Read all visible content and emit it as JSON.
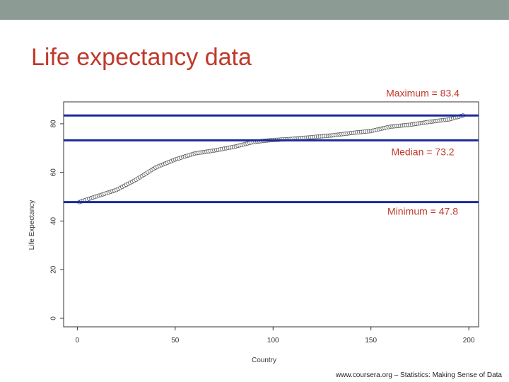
{
  "slide": {
    "title": "Life expectancy data",
    "footer": "www.coursera.org – Statistics: Making Sense of Data"
  },
  "colors": {
    "topbar": "#8c9c94",
    "title": "#c0392b",
    "refline": "#1a2a9a",
    "point_stroke": "#555555",
    "annotation": "#c0392b"
  },
  "chart_data": {
    "type": "scatter",
    "title": "",
    "xlabel": "Country",
    "ylabel": "Life Expectancy",
    "xlim": [
      -7,
      205
    ],
    "ylim": [
      -3.5,
      89
    ],
    "xticks": [
      0,
      50,
      100,
      150,
      200
    ],
    "yticks": [
      0,
      20,
      40,
      60,
      80
    ],
    "grid": false,
    "curve_knots": [
      [
        1,
        47.8
      ],
      [
        10,
        50.2
      ],
      [
        20,
        52.8
      ],
      [
        30,
        57.0
      ],
      [
        40,
        62.0
      ],
      [
        50,
        65.3
      ],
      [
        60,
        67.8
      ],
      [
        70,
        69.0
      ],
      [
        80,
        70.5
      ],
      [
        90,
        72.5
      ],
      [
        98,
        73.2
      ],
      [
        110,
        73.8
      ],
      [
        120,
        74.5
      ],
      [
        130,
        75.2
      ],
      [
        140,
        76.2
      ],
      [
        150,
        77.0
      ],
      [
        160,
        78.8
      ],
      [
        170,
        79.6
      ],
      [
        180,
        80.8
      ],
      [
        190,
        81.8
      ],
      [
        197,
        83.4
      ]
    ],
    "n_points": 197,
    "reference_lines": [
      {
        "label": "Maximum = 83.4",
        "value": 83.4
      },
      {
        "label": "Median = 73.2",
        "value": 73.2
      },
      {
        "label": "Minimum = 47.8",
        "value": 47.8
      }
    ]
  }
}
